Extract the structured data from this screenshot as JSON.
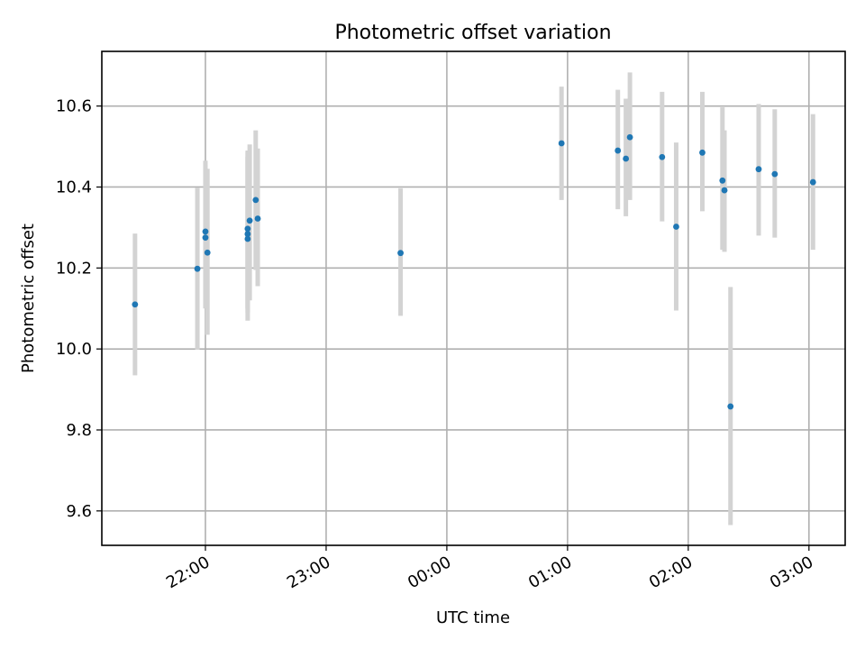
{
  "chart_data": {
    "type": "scatter",
    "title": "Photometric offset variation",
    "xlabel": "UTC time",
    "ylabel": "Photometric offset",
    "x_axis_type": "time",
    "xlim": [
      "21:08:30",
      "03:18:00"
    ],
    "ylim": [
      9.515,
      10.735
    ],
    "x_ticks": [
      {
        "time": "22:00",
        "label": "22:00"
      },
      {
        "time": "23:00",
        "label": "23:00"
      },
      {
        "time": "00:00",
        "label": "00:00"
      },
      {
        "time": "01:00",
        "label": "01:00"
      },
      {
        "time": "02:00",
        "label": "02:00"
      },
      {
        "time": "03:00",
        "label": "03:00"
      }
    ],
    "y_ticks": [
      9.6,
      9.8,
      10.0,
      10.2,
      10.4,
      10.6
    ],
    "y_tick_labels": [
      "9.6",
      "9.8",
      "10.0",
      "10.2",
      "10.4",
      "10.6"
    ],
    "grid": true,
    "colors": {
      "marker": "#1f77b4",
      "errorbar": "#d3d3d3",
      "grid": "#b0b0b0",
      "frame": "#000000"
    },
    "points": [
      {
        "time": "21:25",
        "y": 10.11,
        "ymin": 9.935,
        "ymax": 10.285
      },
      {
        "time": "21:56",
        "y": 10.198,
        "ymin": 9.998,
        "ymax": 10.398
      },
      {
        "time": "22:00",
        "y": 10.29,
        "ymin": 10.12,
        "ymax": 10.465
      },
      {
        "time": "22:00",
        "y": 10.275,
        "ymin": 10.1,
        "ymax": 10.455
      },
      {
        "time": "22:01",
        "y": 10.238,
        "ymin": 10.035,
        "ymax": 10.445
      },
      {
        "time": "22:21",
        "y": 10.272,
        "ymin": 10.07,
        "ymax": 10.475
      },
      {
        "time": "22:21",
        "y": 10.284,
        "ymin": 10.09,
        "ymax": 10.485
      },
      {
        "time": "22:21",
        "y": 10.297,
        "ymin": 10.1,
        "ymax": 10.49
      },
      {
        "time": "22:22",
        "y": 10.317,
        "ymin": 10.12,
        "ymax": 10.505
      },
      {
        "time": "22:25",
        "y": 10.368,
        "ymin": 10.195,
        "ymax": 10.54
      },
      {
        "time": "22:26",
        "y": 10.322,
        "ymin": 10.155,
        "ymax": 10.495
      },
      {
        "time": "23:37",
        "y": 10.237,
        "ymin": 10.082,
        "ymax": 10.397
      },
      {
        "time": "00:57",
        "y": 10.508,
        "ymin": 10.368,
        "ymax": 10.648
      },
      {
        "time": "01:25",
        "y": 10.49,
        "ymin": 10.345,
        "ymax": 10.64
      },
      {
        "time": "01:29",
        "y": 10.47,
        "ymin": 10.328,
        "ymax": 10.618
      },
      {
        "time": "01:31",
        "y": 10.523,
        "ymin": 10.368,
        "ymax": 10.683
      },
      {
        "time": "01:47",
        "y": 10.474,
        "ymin": 10.315,
        "ymax": 10.635
      },
      {
        "time": "01:54",
        "y": 10.302,
        "ymin": 10.095,
        "ymax": 10.51
      },
      {
        "time": "02:07",
        "y": 10.485,
        "ymin": 10.34,
        "ymax": 10.635
      },
      {
        "time": "02:17",
        "y": 10.416,
        "ymin": 10.245,
        "ymax": 10.597
      },
      {
        "time": "02:18",
        "y": 10.392,
        "ymin": 10.24,
        "ymax": 10.54
      },
      {
        "time": "02:21",
        "y": 9.858,
        "ymin": 9.565,
        "ymax": 10.153
      },
      {
        "time": "02:35",
        "y": 10.444,
        "ymin": 10.28,
        "ymax": 10.605
      },
      {
        "time": "02:43",
        "y": 10.432,
        "ymin": 10.275,
        "ymax": 10.592
      },
      {
        "time": "03:02",
        "y": 10.412,
        "ymin": 10.245,
        "ymax": 10.58
      }
    ]
  }
}
